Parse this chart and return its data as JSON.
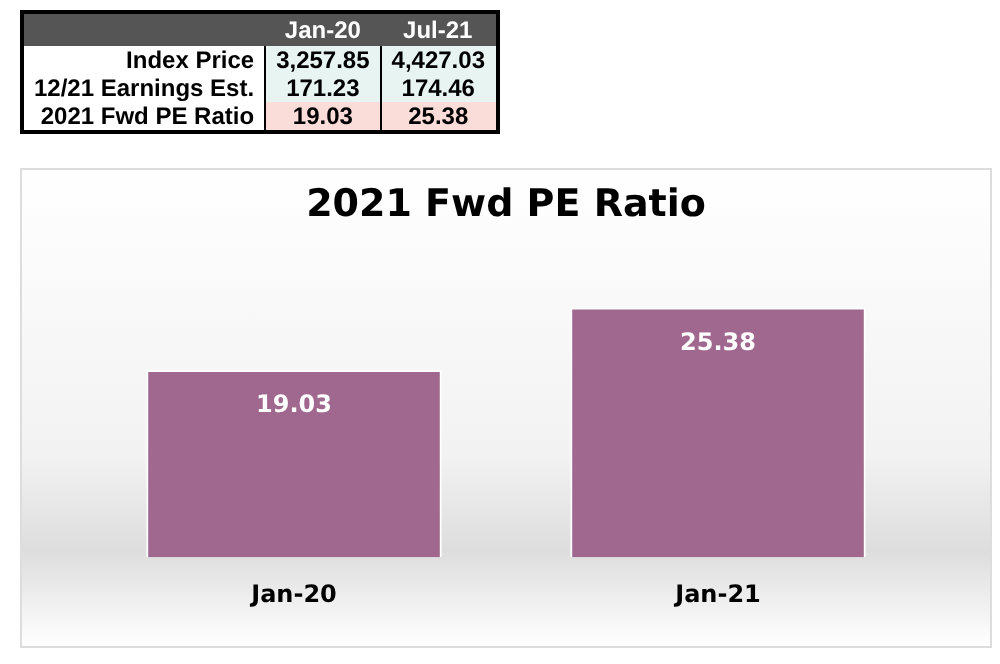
{
  "chart_data": [
    {
      "type": "other",
      "categories": [
        "Jan-20",
        "Jul-21"
      ],
      "series": [
        {
          "name": "Index Price",
          "color": "#e8f4f2",
          "values": [
            3257.85,
            4427.03
          ],
          "value_labels": [
            "3,257.85",
            "4,427.03"
          ]
        },
        {
          "name": "12/21 Earnings Est.",
          "color": "#e8f4f2",
          "values": [
            171.23,
            174.46
          ],
          "value_labels": [
            "171.23",
            "174.46"
          ]
        },
        {
          "name": "2021 Fwd PE Ratio",
          "color": "#fadcd8",
          "values": [
            19.03,
            25.38
          ],
          "value_labels": [
            "19.03",
            "25.38"
          ]
        }
      ]
    },
    {
      "type": "bar",
      "title": "2021 Fwd PE Ratio",
      "categories": [
        "Jan-20",
        "Jan-21"
      ],
      "values": [
        19.03,
        25.38
      ],
      "color": "#a0688f",
      "data_labels": true,
      "grid": false,
      "legend": false,
      "tick_labels": "x"
    }
  ]
}
